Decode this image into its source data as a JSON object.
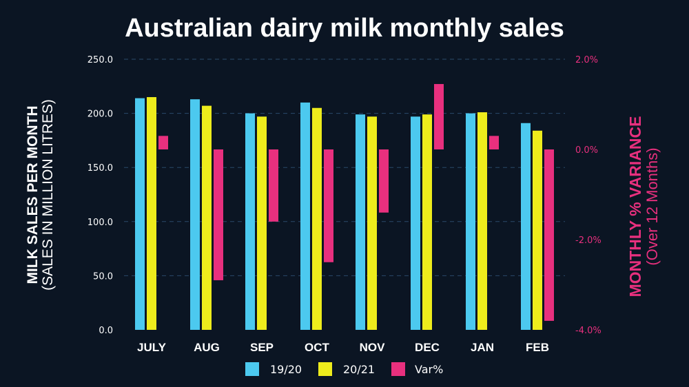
{
  "chart_data": {
    "type": "bar",
    "title": "Australian dairy milk monthly sales",
    "categories": [
      "JULY",
      "AUG",
      "SEP",
      "OCT",
      "NOV",
      "DEC",
      "JAN",
      "FEB"
    ],
    "series": [
      {
        "name": "19/20",
        "axis": "left",
        "color": "#4cc9ef",
        "values": [
          214,
          213,
          200,
          210,
          199,
          197,
          200,
          191
        ]
      },
      {
        "name": "20/21",
        "axis": "left",
        "color": "#eeec1c",
        "values": [
          215,
          207,
          197,
          205,
          197,
          199,
          201,
          184
        ]
      },
      {
        "name": "Var%",
        "axis": "right",
        "color": "#e8307e",
        "values": [
          0.3,
          -2.9,
          -1.6,
          -2.5,
          -1.4,
          1.45,
          0.3,
          -3.8
        ]
      }
    ],
    "ylabel": "MILK SALES PER MONTH",
    "ylabel_sub": "(SALES IN MILLION LITRES)",
    "y2label": "MONTHLY % VARIANCE",
    "y2label_sub": "(Over 12 Months)",
    "ylim": [
      0,
      250
    ],
    "y2lim": [
      -4.0,
      2.0
    ],
    "yticks": [
      "0.0",
      "50.0",
      "100.0",
      "150.0",
      "200.0",
      "250.0"
    ],
    "ytick_values": [
      0,
      50,
      100,
      150,
      200,
      250
    ],
    "y2ticks": [
      "-4.0%",
      "-2.0%",
      "0.0%",
      "2.0%"
    ],
    "y2tick_values": [
      -4,
      -2,
      0,
      2
    ],
    "grid": true,
    "legend_position": "bottom-center"
  }
}
